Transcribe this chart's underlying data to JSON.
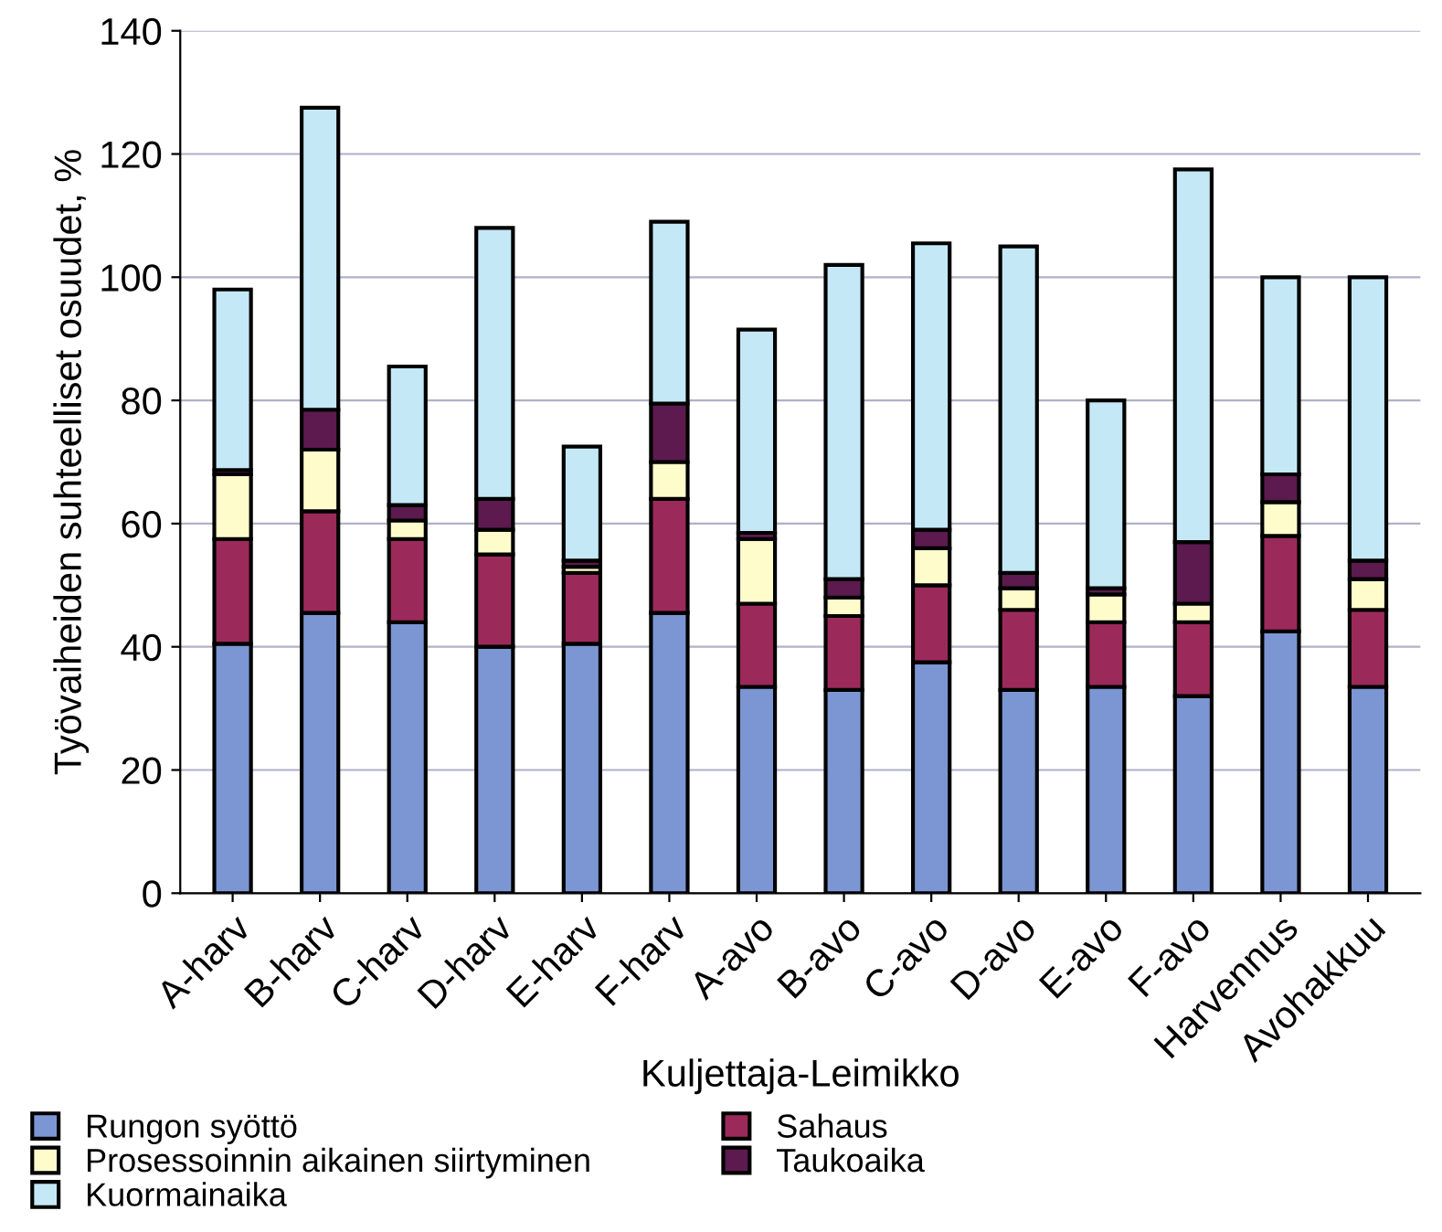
{
  "chart_data": {
    "type": "bar",
    "stacked": true,
    "xlabel": "Kuljettaja-Leimikko",
    "ylabel": "Työvaiheiden suhteelliset osuudet, %",
    "categories": [
      "A-harv",
      "B-harv",
      "C-harv",
      "D-harv",
      "E-harv",
      "F-harv",
      "A-avo",
      "B-avo",
      "C-avo",
      "D-avo",
      "E-avo",
      "F-avo",
      "Harvennus",
      "Avohakkuu"
    ],
    "series": [
      {
        "name": "Rungon syöttö",
        "color": "#7b96d2",
        "values": [
          40.5,
          45.5,
          44,
          40,
          40.5,
          45.5,
          33.5,
          33,
          37.5,
          33,
          33.5,
          32,
          42.5,
          33.5
        ]
      },
      {
        "name": "Sahaus",
        "color": "#9b2a5a",
        "values": [
          17,
          16.5,
          13.5,
          15,
          11.5,
          18.5,
          13.5,
          12,
          12.5,
          13,
          10.5,
          12,
          15.5,
          12.5
        ]
      },
      {
        "name": "Prosessoinnin aikainen siirtyminen",
        "color": "#fffccc",
        "values": [
          10.5,
          10,
          3,
          4,
          1,
          6,
          10.5,
          3,
          6,
          3.5,
          4.5,
          3,
          5.5,
          5
        ]
      },
      {
        "name": "Taukoaika",
        "color": "#5c1a4e",
        "values": [
          0.7,
          6.5,
          2.5,
          5,
          1,
          9.5,
          1,
          3,
          3,
          2.5,
          1,
          10,
          4.5,
          3
        ]
      },
      {
        "name": "Kuormainaika",
        "color": "#c4e8f6",
        "values": [
          29.3,
          49,
          22.5,
          44,
          18.5,
          29.5,
          33,
          51,
          46.5,
          53,
          30.5,
          60.5,
          32,
          46
        ]
      }
    ],
    "ylim": [
      0,
      140
    ],
    "yticks": [
      0,
      20,
      40,
      60,
      80,
      100,
      120,
      140
    ],
    "grid": "y",
    "legend": "bottom"
  }
}
